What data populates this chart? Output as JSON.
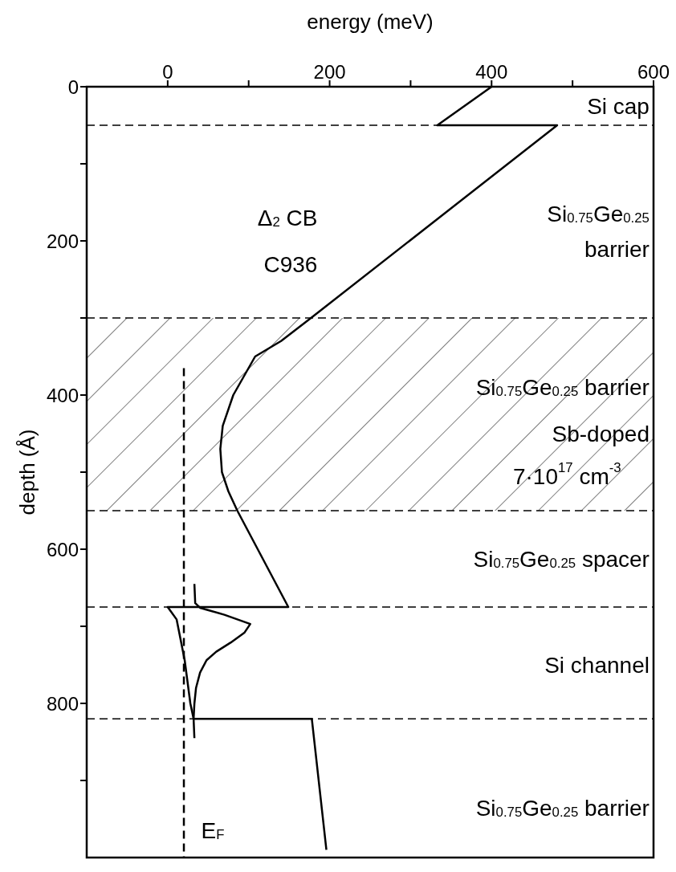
{
  "chart_data": {
    "type": "line",
    "xlabel": "energy (meV)",
    "ylabel": "depth (Å)",
    "xlim": [
      -100,
      600
    ],
    "xticks": [
      0,
      {
        "value": 100,
        "label": null
      },
      200,
      {
        "value": 300,
        "label": null
      },
      400,
      {
        "value": 500,
        "label": null
      },
      600
    ],
    "ylim": [
      1000,
      0
    ],
    "yticks": [
      0,
      {
        "value": 100,
        "label": null
      },
      200,
      {
        "value": 300,
        "label": null
      },
      400,
      {
        "value": 500,
        "label": null
      },
      600,
      {
        "value": 700,
        "label": null
      },
      800,
      {
        "value": 900,
        "label": null
      }
    ],
    "series": [
      {
        "color": "#000000",
        "line_style": "solid",
        "x": [
          400,
          333,
          481,
          177,
          140,
          108,
          81,
          68,
          65,
          67,
          75,
          86,
          149,
          0,
          11,
          21,
          28,
          32,
          178,
          196
        ],
        "values": [
          0,
          50,
          50,
          300,
          330,
          350,
          400,
          440,
          470,
          500,
          525,
          550,
          675,
          675,
          691,
          744,
          800,
          820,
          820,
          990
        ]
      },
      {
        "color": "#000000",
        "line_style": "solid",
        "x": [
          33,
          34,
          40,
          70,
          102,
          95,
          78,
          60,
          48,
          40,
          35,
          33,
          32,
          33
        ],
        "values": [
          645,
          670,
          676,
          685,
          697,
          708,
          721,
          733,
          744,
          760,
          780,
          800,
          820,
          845
        ]
      },
      {
        "color": "#000000",
        "line_style": "dashed",
        "x": [
          20,
          20
        ],
        "values": [
          365,
          1000
        ]
      }
    ],
    "ref_lines": [
      {
        "axis": "y",
        "value": 50,
        "color": "#000000",
        "line_style": "dashed"
      },
      {
        "axis": "y",
        "value": 300,
        "color": "#000000",
        "line_style": "dashed"
      },
      {
        "axis": "y",
        "value": 550,
        "color": "#000000",
        "line_style": "dashed"
      },
      {
        "axis": "y",
        "value": 675,
        "color": "#000000",
        "line_style": "dashed"
      },
      {
        "axis": "y",
        "value": 820,
        "color": "#000000",
        "line_style": "dashed"
      }
    ],
    "bands": [
      {
        "axis": "y",
        "from": 300,
        "to": 550,
        "color": "#000000"
      }
    ],
    "annotations": [
      "Si cap",
      "Si$_{0.75}$Ge$_{0.25}$",
      "barrier",
      "Si$_{0.75}$Ge$_{0.25}$ barrier",
      "Sb-doped",
      "7·10$^{17}$ cm$^{-3}$",
      "Si$_{0.75}$Ge$_{0.25}$ spacer",
      "Si channel",
      "Si$_{0.75}$Ge$_{0.25}$ barrier",
      "Δ$_{2}$ CB",
      "C936",
      "E$_{F}$"
    ]
  }
}
